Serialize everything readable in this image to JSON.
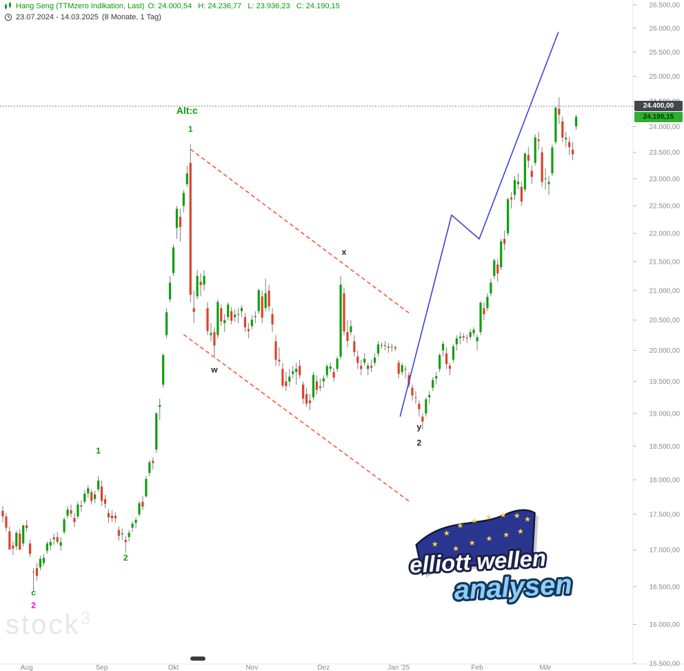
{
  "header": {
    "title": "Hang Seng (TTMzero Indikation, Last)",
    "ohlc_text": "O: 24.000,54   H: 24.236,77   L: 23.936,23   C: 24.190,15",
    "date_range": "23.07.2024 - 14.03.2025",
    "period": "(8 Monate, 1 Tag)"
  },
  "badges": {
    "level": {
      "label": "24.400,00",
      "price": 24400
    },
    "last": {
      "label": "24.190,15",
      "price": 24190.15
    }
  },
  "watermark": {
    "text": "stock",
    "sup": "3"
  },
  "logo": {
    "line1": "elliott wellen",
    "line2": "analysen",
    "star_glyph": "★",
    "star_positions": [
      [
        82,
        62
      ],
      [
        100,
        47
      ],
      [
        120,
        37
      ],
      [
        141,
        31
      ],
      [
        162,
        27
      ],
      [
        183,
        25
      ],
      [
        203,
        27
      ],
      [
        218,
        33
      ],
      [
        112,
        70
      ],
      [
        136,
        63
      ],
      [
        161,
        58
      ],
      [
        186,
        54
      ],
      [
        207,
        50
      ]
    ]
  },
  "colors": {
    "up": "#0ca00c",
    "down": "#e0402a",
    "wick": "#7a7a7a",
    "channel": "#ff4a2e",
    "projection": "#3a3fd8",
    "axis_text": "#8a8a8a",
    "level_line": "#555555",
    "header_green": "#089908",
    "label_green": "#089b08",
    "label_dark": "#222222",
    "label_magenta": "#ff00ff"
  },
  "chart_data": {
    "type": "candlestick",
    "title": "Hang Seng (TTMzero Indikation, Last)",
    "timeframe": "1 Tag",
    "date_range": "23.07.2024 - 14.03.2025",
    "last_values": {
      "open": "24.000,54",
      "high": "24.236,77",
      "low": "23.936,23",
      "close": "24.190,15"
    },
    "y_axis": {
      "scale": "log",
      "min": 15500,
      "max": 26500,
      "tick_step": 500,
      "ticks": [
        {
          "value": 26500,
          "label": "26.500,00"
        },
        {
          "value": 26000,
          "label": "26.000,00"
        },
        {
          "value": 25500,
          "label": "25.500,00"
        },
        {
          "value": 25000,
          "label": "25.000,00"
        },
        {
          "value": 24500,
          "label": "24.500,00"
        },
        {
          "value": 24000,
          "label": "24.000,00"
        },
        {
          "value": 23500,
          "label": "23.500,00"
        },
        {
          "value": 23000,
          "label": "23.000,00"
        },
        {
          "value": 22500,
          "label": "22.500,00"
        },
        {
          "value": 22000,
          "label": "22.000,00"
        },
        {
          "value": 21500,
          "label": "21.500,00"
        },
        {
          "value": 21000,
          "label": "21.000,00"
        },
        {
          "value": 20500,
          "label": "20.500,00"
        },
        {
          "value": 20000,
          "label": "20.000,00"
        },
        {
          "value": 19500,
          "label": "19.500,00"
        },
        {
          "value": 19000,
          "label": "19.000,00"
        },
        {
          "value": 18500,
          "label": "18.500,00"
        },
        {
          "value": 18000,
          "label": "18.000,00"
        },
        {
          "value": 17500,
          "label": "17.500,00"
        },
        {
          "value": 17000,
          "label": "17.000,00"
        },
        {
          "value": 16500,
          "label": "16.500,00"
        },
        {
          "value": 16000,
          "label": "16.000,00"
        },
        {
          "value": 15500,
          "label": "15.500,00"
        }
      ]
    },
    "x_axis": {
      "months": [
        {
          "label": "Aug",
          "idx": 7
        },
        {
          "label": "Sep",
          "idx": 29
        },
        {
          "label": "Okt",
          "idx": 50
        },
        {
          "label": "Nov",
          "idx": 73
        },
        {
          "label": "Dez",
          "idx": 94
        },
        {
          "label": "Jan '25",
          "idx": 116
        },
        {
          "label": "Feb",
          "idx": 139
        },
        {
          "label": "Mär",
          "idx": 159
        }
      ]
    },
    "candles": [
      [
        17550,
        17620,
        17390,
        17470
      ],
      [
        17470,
        17520,
        17260,
        17311
      ],
      [
        17260,
        17330,
        17080,
        17005
      ],
      [
        17060,
        17120,
        16930,
        17021
      ],
      [
        17050,
        17270,
        17000,
        17238
      ],
      [
        17230,
        17290,
        17000,
        17003
      ],
      [
        17090,
        17350,
        17050,
        17345
      ],
      [
        17345,
        17420,
        17250,
        17305
      ],
      [
        17090,
        17140,
        16900,
        16946
      ],
      [
        16700,
        16750,
        16441,
        16698
      ],
      [
        16750,
        16820,
        16580,
        16647
      ],
      [
        16760,
        16920,
        16720,
        16878
      ],
      [
        16820,
        16945,
        16780,
        16892
      ],
      [
        16990,
        17120,
        16950,
        17090
      ],
      [
        17060,
        17160,
        17000,
        17112
      ],
      [
        17150,
        17230,
        17070,
        17174
      ],
      [
        17180,
        17250,
        17080,
        17113
      ],
      [
        17060,
        17180,
        16990,
        17109
      ],
      [
        17250,
        17460,
        17220,
        17430
      ],
      [
        17480,
        17620,
        17440,
        17570
      ],
      [
        17560,
        17640,
        17460,
        17511
      ],
      [
        17450,
        17520,
        17320,
        17391
      ],
      [
        17470,
        17680,
        17430,
        17641
      ],
      [
        17630,
        17700,
        17540,
        17612
      ],
      [
        17680,
        17850,
        17650,
        17799
      ],
      [
        17800,
        17920,
        17740,
        17875
      ],
      [
        17820,
        17860,
        17640,
        17692
      ],
      [
        17720,
        17840,
        17660,
        17786
      ],
      [
        17860,
        18060,
        17820,
        17989
      ],
      [
        17900,
        17990,
        17620,
        17692
      ],
      [
        17720,
        17780,
        17590,
        17651
      ],
      [
        17520,
        17580,
        17380,
        17457
      ],
      [
        17480,
        17560,
        17390,
        17444
      ],
      [
        17480,
        17530,
        17380,
        17444
      ],
      [
        17280,
        17330,
        17130,
        17197
      ],
      [
        17220,
        17300,
        17140,
        17234
      ],
      [
        17140,
        17190,
        16964,
        17109
      ],
      [
        17180,
        17280,
        17120,
        17240
      ],
      [
        17310,
        17400,
        17250,
        17369
      ],
      [
        17380,
        17460,
        17300,
        17422
      ],
      [
        17500,
        17690,
        17470,
        17660
      ],
      [
        17680,
        17760,
        17560,
        17610
      ],
      [
        17760,
        18060,
        17740,
        18013
      ],
      [
        18100,
        18290,
        18050,
        18259
      ],
      [
        18280,
        18330,
        18150,
        18247
      ],
      [
        18450,
        19020,
        18400,
        19001
      ],
      [
        19100,
        19230,
        18900,
        19129
      ],
      [
        19450,
        19950,
        19400,
        19925
      ],
      [
        20250,
        20700,
        20200,
        20632
      ],
      [
        20850,
        21250,
        20800,
        21134
      ],
      [
        21300,
        21800,
        21250,
        21750
      ],
      [
        22100,
        22500,
        21900,
        22444
      ],
      [
        22300,
        22450,
        21850,
        22114
      ],
      [
        22500,
        22790,
        22380,
        22737
      ],
      [
        22900,
        23240,
        22850,
        23100
      ],
      [
        23300,
        23660,
        20800,
        20927
      ],
      [
        20700,
        21000,
        20450,
        20637
      ],
      [
        20900,
        21350,
        20850,
        21252
      ],
      [
        21150,
        21300,
        20900,
        21092
      ],
      [
        21100,
        21350,
        21000,
        21251
      ],
      [
        20700,
        20800,
        20250,
        20318
      ],
      [
        20250,
        20450,
        20150,
        20286
      ],
      [
        20300,
        20380,
        19900,
        20079
      ],
      [
        20250,
        20850,
        20200,
        20804
      ],
      [
        20700,
        20760,
        20400,
        20478
      ],
      [
        20450,
        20600,
        20300,
        20499
      ],
      [
        20550,
        20800,
        20500,
        20760
      ],
      [
        20650,
        20720,
        20430,
        20489
      ],
      [
        20550,
        20680,
        20470,
        20590
      ],
      [
        20600,
        20700,
        20450,
        20599
      ],
      [
        20650,
        20750,
        20550,
        20701
      ],
      [
        20550,
        20620,
        20300,
        20380
      ],
      [
        20350,
        20450,
        20200,
        20317
      ],
      [
        20400,
        20580,
        20350,
        20506
      ],
      [
        20550,
        20650,
        20450,
        20568
      ],
      [
        20650,
        21030,
        20600,
        21007
      ],
      [
        20900,
        21000,
        20450,
        20538
      ],
      [
        20700,
        21200,
        20650,
        20953
      ],
      [
        21000,
        21100,
        20650,
        20728
      ],
      [
        20600,
        20700,
        20300,
        20427
      ],
      [
        20150,
        20250,
        19750,
        19847
      ],
      [
        19850,
        20050,
        19750,
        19823
      ],
      [
        19700,
        19800,
        19400,
        19436
      ],
      [
        19500,
        19650,
        19350,
        19426
      ],
      [
        19500,
        19700,
        19420,
        19577
      ],
      [
        19620,
        19750,
        19550,
        19664
      ],
      [
        19650,
        19800,
        19450,
        19705
      ],
      [
        19750,
        19850,
        19550,
        19601
      ],
      [
        19450,
        19500,
        19150,
        19230
      ],
      [
        19300,
        19400,
        19100,
        19151
      ],
      [
        19200,
        19300,
        19050,
        19159
      ],
      [
        19250,
        19650,
        19200,
        19603
      ],
      [
        19500,
        19600,
        19300,
        19367
      ],
      [
        19400,
        19550,
        19350,
        19424
      ],
      [
        19500,
        19600,
        19400,
        19550
      ],
      [
        19600,
        19780,
        19550,
        19746
      ],
      [
        19700,
        19800,
        19650,
        19742
      ],
      [
        19650,
        19720,
        19500,
        19560
      ],
      [
        19700,
        19900,
        19650,
        19866
      ],
      [
        19900,
        21250,
        19850,
        21100
      ],
      [
        20950,
        21050,
        20250,
        20311
      ],
      [
        20300,
        20500,
        20050,
        20155
      ],
      [
        20300,
        20500,
        20250,
        20397
      ],
      [
        20150,
        20250,
        19900,
        19971
      ],
      [
        19900,
        20000,
        19700,
        19795
      ],
      [
        19750,
        19850,
        19600,
        19700
      ],
      [
        19800,
        19950,
        19750,
        19865
      ],
      [
        19700,
        19800,
        19600,
        19753
      ],
      [
        19750,
        19850,
        19650,
        19721
      ],
      [
        19800,
        19950,
        19750,
        19883
      ],
      [
        19950,
        20150,
        19900,
        20098
      ],
      [
        20090,
        20130,
        20030,
        20090
      ],
      [
        20080,
        20150,
        20000,
        20085
      ],
      [
        20060,
        20120,
        19960,
        20041
      ],
      [
        20050,
        20110,
        19980,
        20060
      ],
      [
        20050,
        20080,
        19990,
        20030
      ],
      [
        19800,
        19850,
        19550,
        19623
      ],
      [
        19650,
        19800,
        19600,
        19760
      ],
      [
        19700,
        19750,
        19550,
        19688
      ],
      [
        19600,
        19650,
        19400,
        19448
      ],
      [
        19400,
        19450,
        19200,
        19280
      ],
      [
        19250,
        19350,
        19150,
        19241
      ],
      [
        19150,
        19200,
        18950,
        19064
      ],
      [
        18950,
        19000,
        18750,
        18874
      ],
      [
        19000,
        19250,
        18950,
        19220
      ],
      [
        19250,
        19350,
        19150,
        19286
      ],
      [
        19400,
        19570,
        19350,
        19523
      ],
      [
        19550,
        19650,
        19450,
        19584
      ],
      [
        19700,
        19950,
        19650,
        19926
      ],
      [
        20000,
        20150,
        19900,
        20107
      ],
      [
        19950,
        20050,
        19700,
        19779
      ],
      [
        19750,
        19800,
        19600,
        19701
      ],
      [
        19850,
        20100,
        19800,
        20066
      ],
      [
        20100,
        20250,
        20000,
        20198
      ],
      [
        20200,
        20300,
        20100,
        20225
      ],
      [
        20230,
        20280,
        20150,
        20210
      ],
      [
        20210,
        20260,
        20120,
        20200
      ],
      [
        20220,
        20350,
        20180,
        20300
      ],
      [
        20280,
        20380,
        20220,
        20340
      ],
      [
        20150,
        20260,
        20000,
        20217
      ],
      [
        20300,
        20820,
        20250,
        20790
      ],
      [
        20700,
        20800,
        20500,
        20597
      ],
      [
        20700,
        20950,
        20650,
        20892
      ],
      [
        20950,
        21200,
        20900,
        21134
      ],
      [
        21250,
        21560,
        21200,
        21522
      ],
      [
        21450,
        21550,
        21150,
        21295
      ],
      [
        21400,
        21900,
        21350,
        21858
      ],
      [
        21900,
        22050,
        21700,
        21814
      ],
      [
        22000,
        22650,
        21950,
        22620
      ],
      [
        22650,
        22750,
        22450,
        22616
      ],
      [
        22700,
        23050,
        22600,
        22977
      ],
      [
        22900,
        23100,
        22800,
        22944
      ],
      [
        22850,
        22950,
        22500,
        22577
      ],
      [
        22800,
        23500,
        22750,
        23478
      ],
      [
        23450,
        23600,
        23200,
        23342
      ],
      [
        23150,
        23250,
        22900,
        23034
      ],
      [
        23300,
        23850,
        23250,
        23788
      ],
      [
        23750,
        23900,
        23550,
        23718
      ],
      [
        23500,
        23600,
        22850,
        22941
      ],
      [
        23000,
        23200,
        22800,
        23006
      ],
      [
        22900,
        23050,
        22700,
        22942
      ],
      [
        23100,
        23650,
        23050,
        23594
      ],
      [
        23700,
        24390,
        23650,
        24370
      ],
      [
        24350,
        24580,
        24050,
        24231
      ],
      [
        24100,
        24200,
        23700,
        23783
      ],
      [
        23750,
        23900,
        23600,
        23782
      ],
      [
        23700,
        23800,
        23450,
        23600
      ],
      [
        23550,
        23700,
        23350,
        23463
      ],
      [
        24001,
        24237,
        23936,
        24190
      ]
    ],
    "annotations": {
      "level_line": {
        "price": 24400
      },
      "wave_labels": [
        {
          "text": "Alt:c",
          "idx": 54,
          "price": 24300,
          "color": "#089b08",
          "size": 14
        },
        {
          "text": "1",
          "idx": 55,
          "price": 23950,
          "color": "#089b08",
          "size": 12
        },
        {
          "text": "1",
          "idx": 28,
          "price": 18430,
          "color": "#089b08",
          "size": 12
        },
        {
          "text": "2",
          "idx": 36,
          "price": 16890,
          "color": "#089b08",
          "size": 12
        },
        {
          "text": "c",
          "idx": 9,
          "price": 16420,
          "color": "#089b08",
          "size": 12
        },
        {
          "text": "2",
          "idx": 9,
          "price": 16250,
          "color": "#ff00ff",
          "size": 12
        },
        {
          "text": "w",
          "idx": 62,
          "price": 19690,
          "color": "#222222",
          "size": 12
        },
        {
          "text": "x",
          "idx": 100,
          "price": 21670,
          "color": "#222222",
          "size": 12
        },
        {
          "text": "y",
          "idx": 122,
          "price": 18790,
          "color": "#222222",
          "size": 12
        },
        {
          "text": "2",
          "idx": 122,
          "price": 18550,
          "color": "#222222",
          "size": 12
        }
      ],
      "channel_lines": [
        {
          "from_idx": 55,
          "from_price": 23560,
          "to_idx": 119,
          "to_price": 20620
        },
        {
          "from_idx": 53,
          "from_price": 20260,
          "to_idx": 119,
          "to_price": 17690
        }
      ],
      "projection_line": [
        {
          "idx": 116.4,
          "price": 18950
        },
        {
          "idx": 131.5,
          "price": 22330
        },
        {
          "idx": 139.6,
          "price": 21900
        },
        {
          "idx": 162.8,
          "price": 25920
        }
      ]
    }
  }
}
